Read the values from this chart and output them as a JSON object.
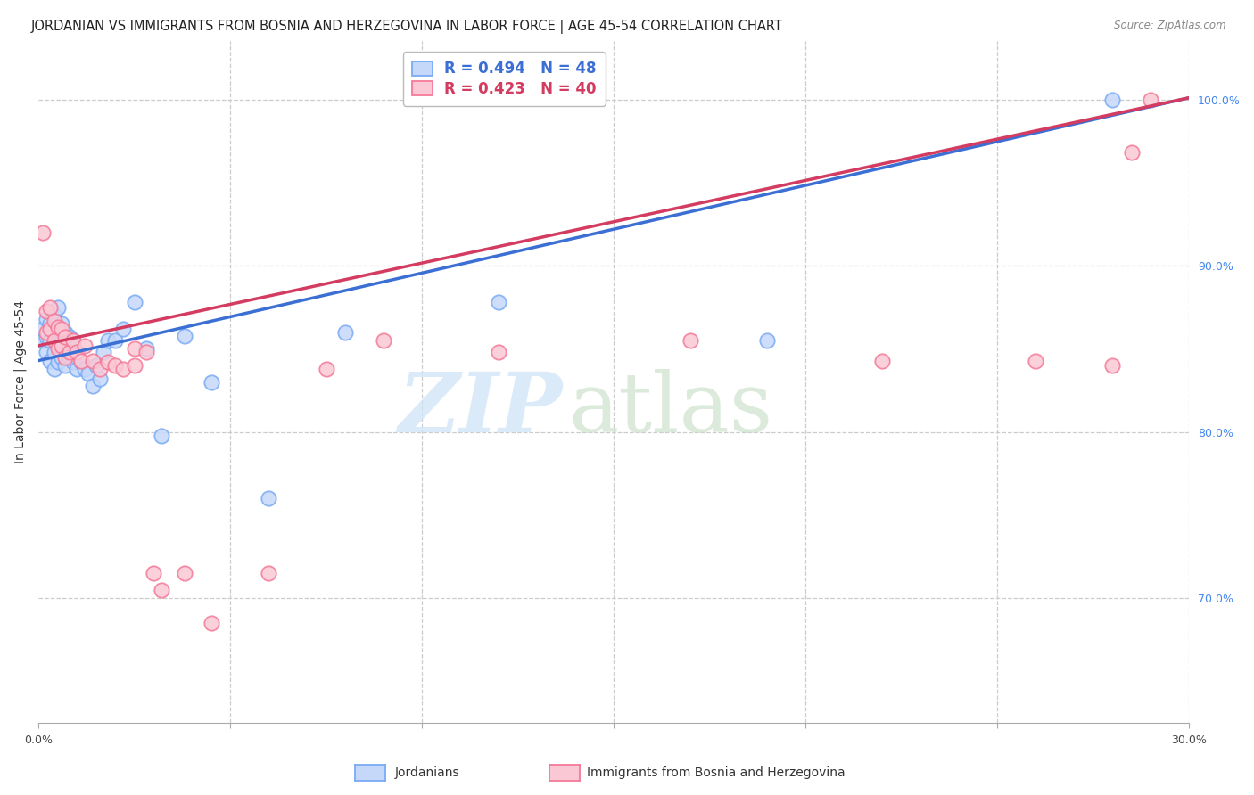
{
  "title": "JORDANIAN VS IMMIGRANTS FROM BOSNIA AND HERZEGOVINA IN LABOR FORCE | AGE 45-54 CORRELATION CHART",
  "source": "Source: ZipAtlas.com",
  "ylabel": "In Labor Force | Age 45-54",
  "xlim": [
    0.0,
    0.3
  ],
  "ylim": [
    0.625,
    1.035
  ],
  "ytick_right": [
    0.7,
    0.8,
    0.9,
    1.0
  ],
  "ytick_right_labels": [
    "70.0%",
    "80.0%",
    "90.0%",
    "100.0%"
  ],
  "blue_face": "#C5D8FA",
  "blue_edge": "#7AABF5",
  "pink_face": "#FAC8D5",
  "pink_edge": "#F57A99",
  "blue_line": "#3B6FD4",
  "pink_line": "#D43B60",
  "legend_blue_r": "R = 0.494",
  "legend_blue_n": "N = 48",
  "legend_pink_r": "R = 0.423",
  "legend_pink_n": "N = 40",
  "blue_x": [
    0.001,
    0.001,
    0.002,
    0.002,
    0.002,
    0.003,
    0.003,
    0.003,
    0.004,
    0.004,
    0.004,
    0.004,
    0.005,
    0.005,
    0.005,
    0.005,
    0.006,
    0.006,
    0.006,
    0.007,
    0.007,
    0.007,
    0.008,
    0.008,
    0.009,
    0.009,
    0.01,
    0.01,
    0.011,
    0.012,
    0.013,
    0.014,
    0.015,
    0.016,
    0.017,
    0.018,
    0.02,
    0.022,
    0.025,
    0.028,
    0.032,
    0.038,
    0.045,
    0.06,
    0.08,
    0.12,
    0.19,
    0.28
  ],
  "blue_y": [
    0.855,
    0.862,
    0.848,
    0.857,
    0.868,
    0.843,
    0.855,
    0.865,
    0.838,
    0.848,
    0.858,
    0.87,
    0.842,
    0.852,
    0.862,
    0.875,
    0.845,
    0.855,
    0.865,
    0.84,
    0.85,
    0.86,
    0.845,
    0.857,
    0.842,
    0.855,
    0.838,
    0.848,
    0.842,
    0.838,
    0.835,
    0.828,
    0.84,
    0.832,
    0.848,
    0.855,
    0.855,
    0.862,
    0.878,
    0.85,
    0.798,
    0.858,
    0.83,
    0.76,
    0.86,
    0.878,
    0.855,
    1.0
  ],
  "pink_x": [
    0.001,
    0.002,
    0.002,
    0.003,
    0.003,
    0.004,
    0.004,
    0.005,
    0.005,
    0.006,
    0.006,
    0.007,
    0.007,
    0.008,
    0.009,
    0.01,
    0.011,
    0.012,
    0.014,
    0.016,
    0.018,
    0.02,
    0.022,
    0.025,
    0.025,
    0.028,
    0.03,
    0.032,
    0.038,
    0.045,
    0.06,
    0.075,
    0.09,
    0.12,
    0.17,
    0.22,
    0.26,
    0.28,
    0.285,
    0.29
  ],
  "pink_y": [
    0.92,
    0.873,
    0.86,
    0.875,
    0.862,
    0.855,
    0.867,
    0.85,
    0.863,
    0.852,
    0.862,
    0.845,
    0.857,
    0.848,
    0.855,
    0.848,
    0.843,
    0.852,
    0.843,
    0.838,
    0.842,
    0.84,
    0.838,
    0.85,
    0.84,
    0.848,
    0.715,
    0.705,
    0.715,
    0.685,
    0.715,
    0.838,
    0.855,
    0.848,
    0.855,
    0.843,
    0.843,
    0.84,
    0.968,
    1.0
  ],
  "blue_trendline_x0": 0.0,
  "blue_trendline_y0": 0.843,
  "blue_trendline_x1": 0.3,
  "blue_trendline_y1": 1.001,
  "pink_trendline_x0": 0.0,
  "pink_trendline_y0": 0.852,
  "pink_trendline_x1": 0.3,
  "pink_trendline_y1": 1.001,
  "watermark_zip": "ZIP",
  "watermark_atlas": "atlas",
  "background_color": "#ffffff",
  "grid_color": "#cccccc",
  "title_fontsize": 10.5,
  "ylabel_fontsize": 10,
  "tick_fontsize": 9,
  "right_tick_color": "#4488EE",
  "legend_fontsize": 12
}
